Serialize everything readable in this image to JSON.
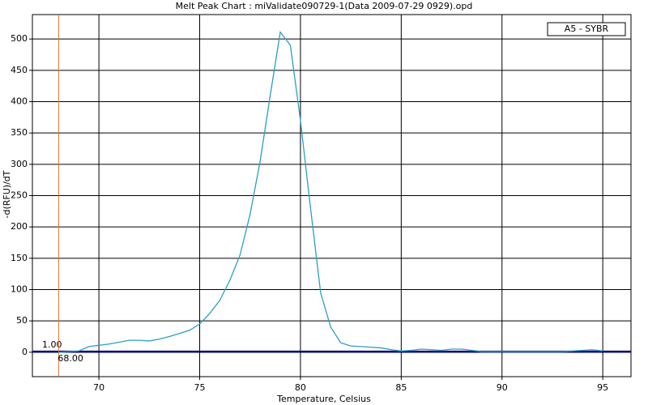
{
  "chart_data": {
    "type": "line",
    "title": "Melt Peak Chart : miValidate090729-1(Data 2009-07-29 0929).opd",
    "x_label": "Temperature, Celsius",
    "y_label": "-d(RFU)/dT",
    "x": [
      68,
      69,
      69.5,
      70,
      70.5,
      71,
      71.5,
      72,
      72.5,
      73,
      73.5,
      74,
      74.5,
      75,
      75.5,
      76,
      76.5,
      77,
      77.5,
      78,
      78.5,
      79,
      79.5,
      80,
      80.5,
      81,
      81.5,
      82,
      82.5,
      83,
      83.5,
      84,
      84.5,
      85,
      85.5,
      86,
      86.5,
      87,
      87.5,
      88,
      88.5,
      89,
      90,
      91,
      92,
      93,
      94,
      94.5,
      95
    ],
    "series": [
      {
        "name": "A5 - SYBR",
        "color": "#2a9fc4",
        "values": [
          0,
          2,
          9,
          11,
          13,
          16,
          19,
          19,
          18,
          21,
          25,
          30,
          35,
          45,
          62,
          83,
          115,
          155,
          220,
          305,
          410,
          511,
          490,
          370,
          230,
          95,
          40,
          15,
          10,
          9,
          8,
          7,
          4,
          2,
          3,
          5,
          4,
          3,
          5,
          5,
          3,
          1,
          1,
          1,
          1,
          1,
          3,
          4,
          2
        ]
      }
    ],
    "threshold": {
      "value": 1,
      "label": "1.00",
      "color": "#00007f"
    },
    "marker": {
      "value": 68,
      "label": "68.00",
      "color": "#e07030"
    },
    "xlim": [
      66.7,
      96.4
    ],
    "ylim": [
      -39,
      539
    ],
    "xticks": [
      70,
      75,
      80,
      85,
      90,
      95
    ],
    "yticks": [
      0,
      50,
      100,
      150,
      200,
      250,
      300,
      350,
      400,
      450,
      500
    ],
    "grid": true,
    "legend": "top-right"
  }
}
